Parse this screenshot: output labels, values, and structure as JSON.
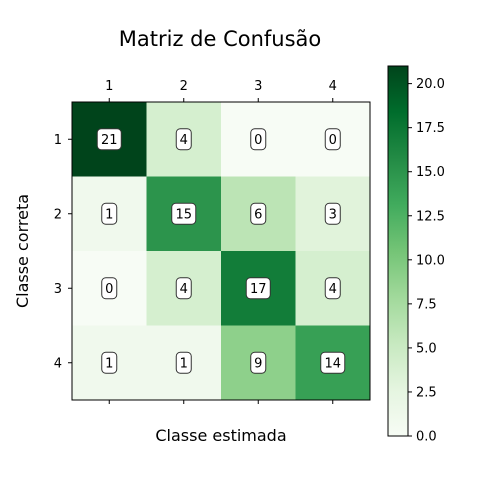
{
  "chart_data": {
    "type": "heatmap",
    "title": "Matriz de Confusão",
    "xlabel": "Classe estimada",
    "ylabel": "Classe correta",
    "x_categories": [
      "1",
      "2",
      "3",
      "4"
    ],
    "y_categories": [
      "1",
      "2",
      "3",
      "4"
    ],
    "values": [
      [
        21,
        4,
        0,
        0
      ],
      [
        1,
        15,
        6,
        3
      ],
      [
        0,
        4,
        17,
        4
      ],
      [
        1,
        1,
        9,
        14
      ]
    ],
    "colormap": "greens",
    "colorbar": {
      "range": [
        0,
        21
      ],
      "ticks": [
        "0.0",
        "2.5",
        "5.0",
        "7.5",
        "10.0",
        "12.5",
        "15.0",
        "17.5",
        "20.0"
      ],
      "tick_values": [
        0,
        2.5,
        5,
        7.5,
        10,
        12.5,
        15,
        17.5,
        20
      ]
    },
    "x_ticks_position": "top",
    "grid": false
  }
}
